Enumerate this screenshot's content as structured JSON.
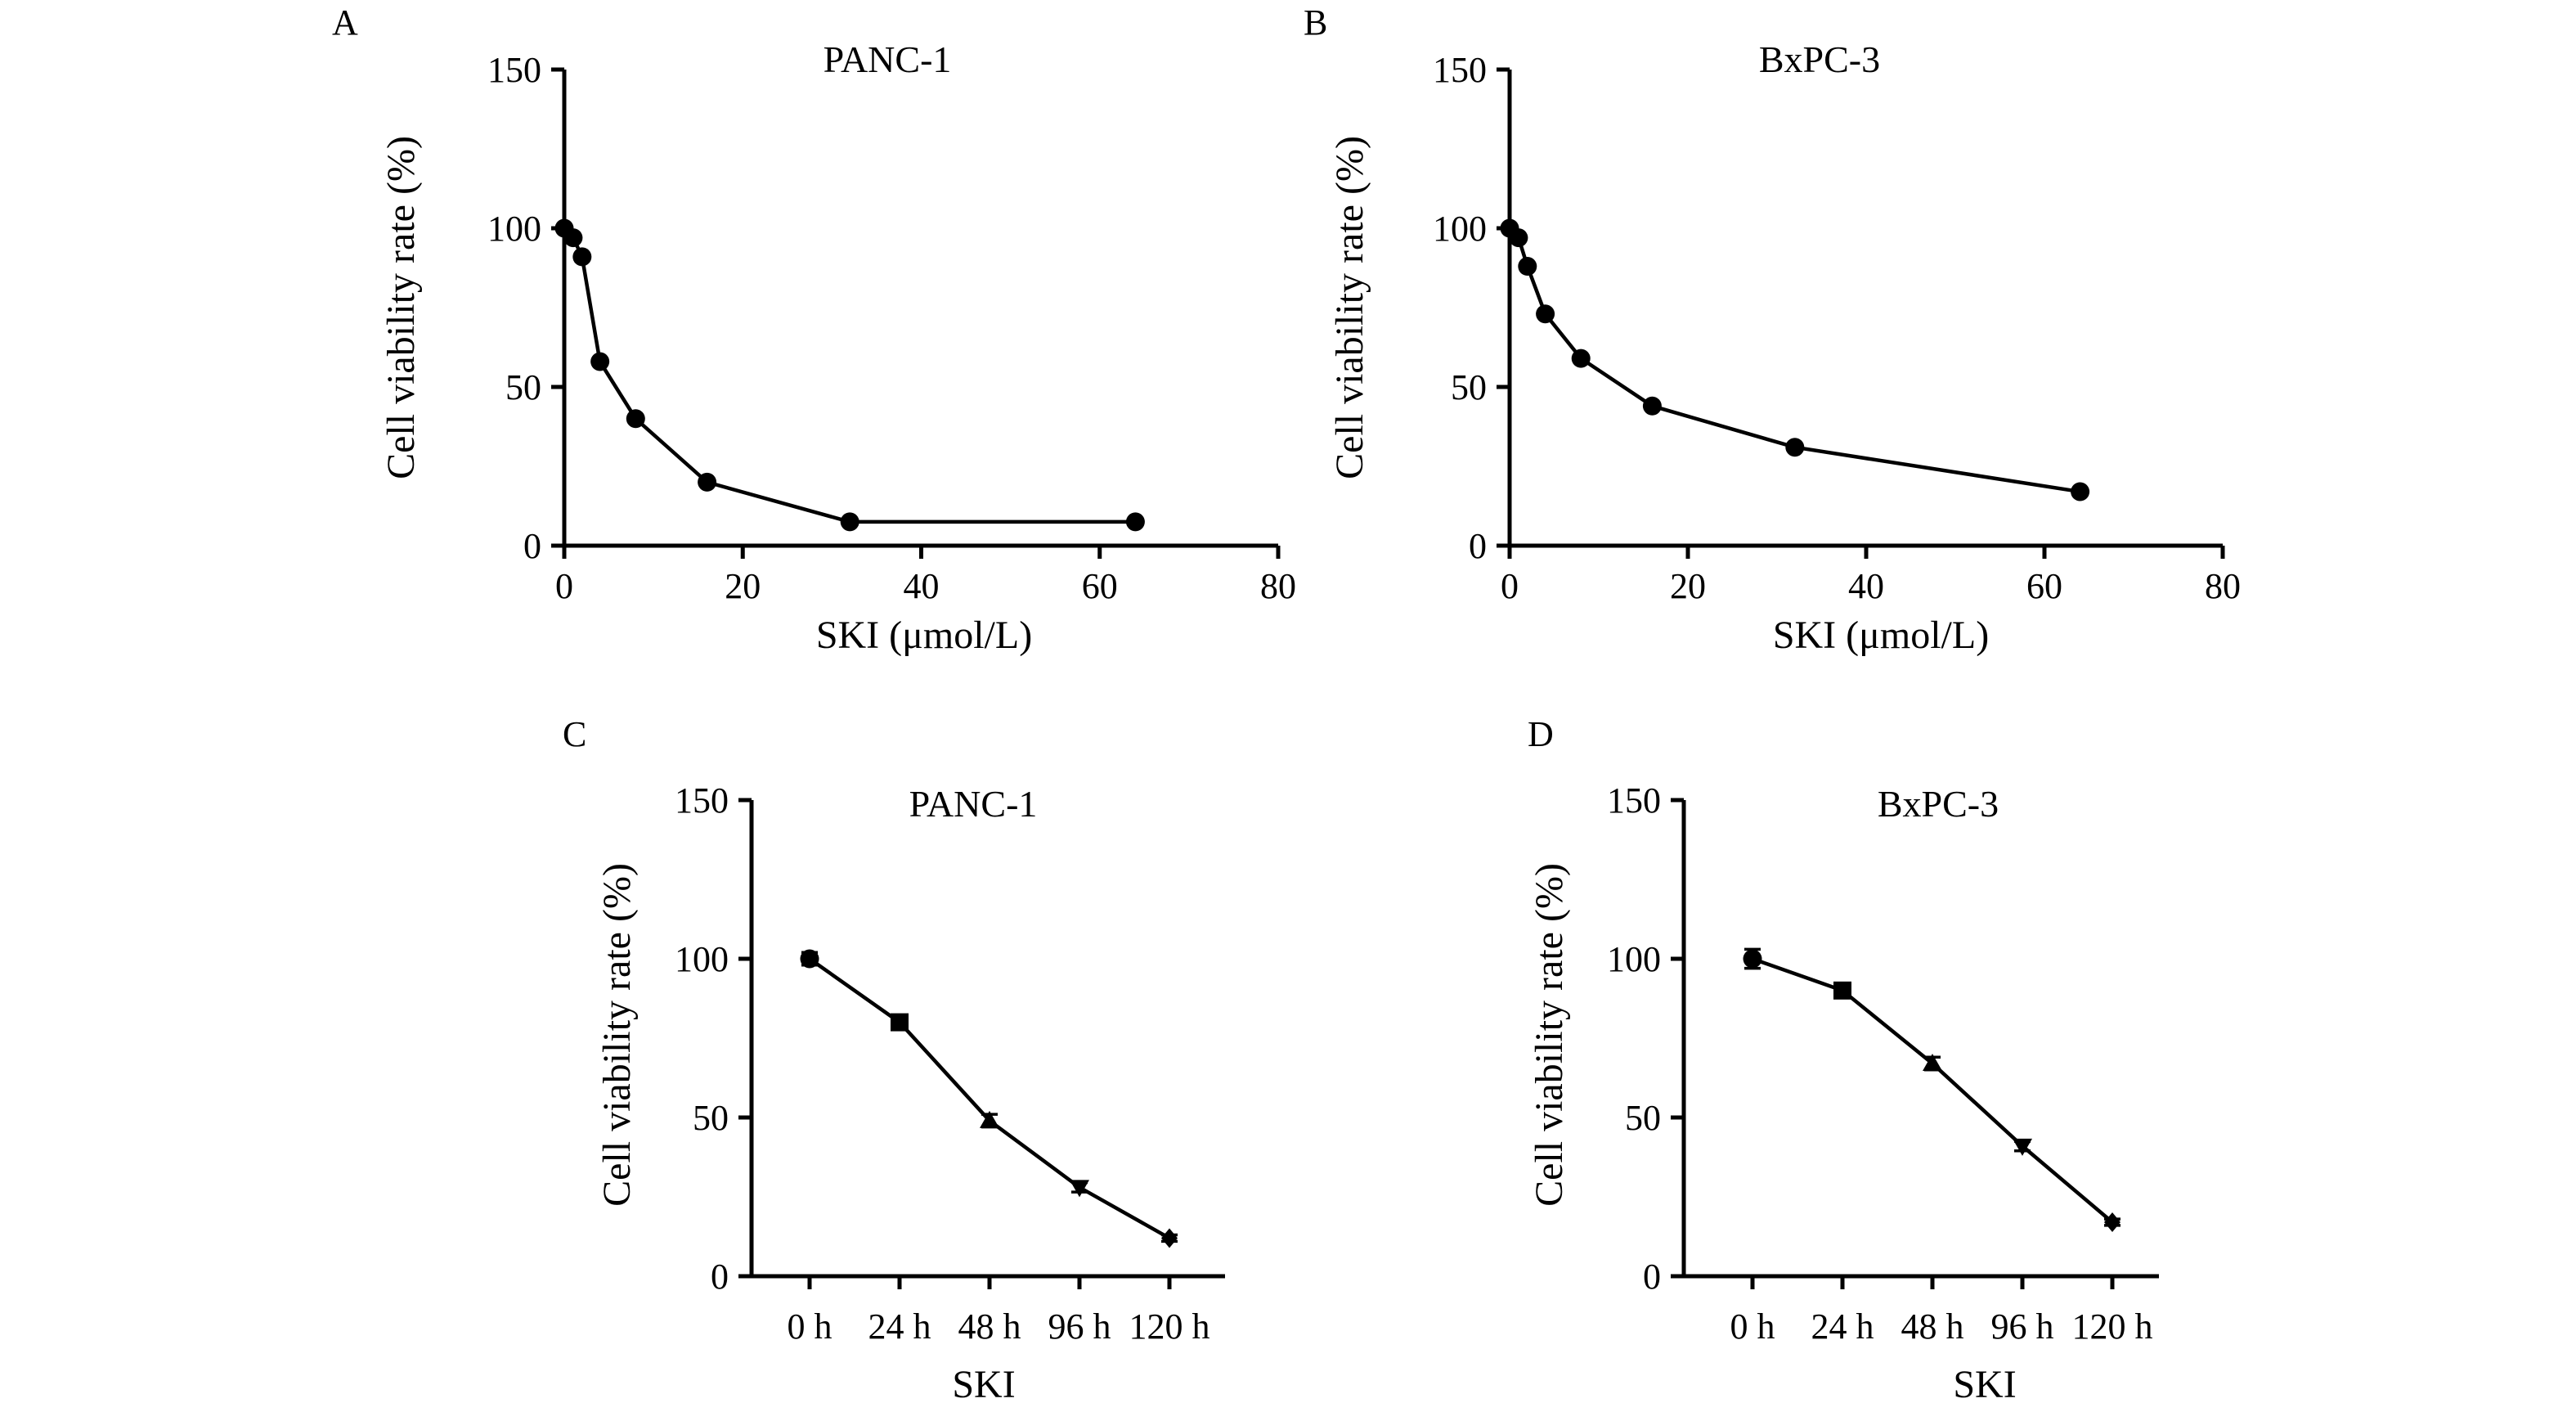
{
  "chart_data": [
    {
      "panel": "A",
      "type": "line",
      "title": "PANC-1",
      "xlabel": "SKI (μmol/L)",
      "ylabel": "Cell viability rate (%)",
      "x_scale": "linear",
      "xlim": [
        0,
        80
      ],
      "ylim": [
        0,
        150
      ],
      "xticks": [
        0,
        20,
        40,
        60,
        80
      ],
      "yticks": [
        0,
        50,
        100,
        150
      ],
      "marker": "circle",
      "grid": false,
      "series": [
        {
          "x": [
            0,
            1,
            2,
            4,
            8,
            16,
            32,
            64
          ],
          "y": [
            100,
            97,
            91,
            58,
            40,
            20,
            7.5,
            7.5
          ]
        }
      ]
    },
    {
      "panel": "B",
      "type": "line",
      "title": "BxPC-3",
      "xlabel": "SKI (μmol/L)",
      "ylabel": "Cell viability rate (%)",
      "x_scale": "linear",
      "xlim": [
        0,
        80
      ],
      "ylim": [
        0,
        150
      ],
      "xticks": [
        0,
        20,
        40,
        60,
        80
      ],
      "yticks": [
        0,
        50,
        100,
        150
      ],
      "marker": "circle",
      "grid": false,
      "series": [
        {
          "x": [
            0,
            1,
            2,
            4,
            8,
            16,
            32,
            64
          ],
          "y": [
            100,
            97,
            88,
            73,
            59,
            44,
            31,
            17
          ]
        }
      ]
    },
    {
      "panel": "C",
      "type": "line",
      "title": "PANC-1",
      "xlabel": "SKI",
      "ylabel": "Cell viability rate (%)",
      "x_scale": "category",
      "categories": [
        "0 h",
        "24 h",
        "48 h",
        "96 h",
        "120 h"
      ],
      "ylim": [
        0,
        150
      ],
      "yticks": [
        0,
        50,
        100,
        150
      ],
      "grid": false,
      "series": [
        {
          "values": [
            100,
            80,
            49,
            28,
            12
          ],
          "errors": [
            2,
            1.5,
            2,
            1.5,
            1
          ],
          "markers": [
            "circle",
            "square",
            "triangle",
            "triangle-down",
            "diamond"
          ]
        }
      ]
    },
    {
      "panel": "D",
      "type": "line",
      "title": "BxPC-3",
      "xlabel": "SKI",
      "ylabel": "Cell viability rate (%)",
      "x_scale": "category",
      "categories": [
        "0 h",
        "24 h",
        "48 h",
        "96 h",
        "120 h"
      ],
      "ylim": [
        0,
        150
      ],
      "yticks": [
        0,
        50,
        100,
        150
      ],
      "grid": false,
      "series": [
        {
          "values": [
            100,
            90,
            67,
            41,
            17
          ],
          "errors": [
            3,
            1.5,
            2,
            1.5,
            1
          ],
          "markers": [
            "circle",
            "square",
            "triangle",
            "triangle-down",
            "diamond"
          ]
        }
      ]
    }
  ]
}
